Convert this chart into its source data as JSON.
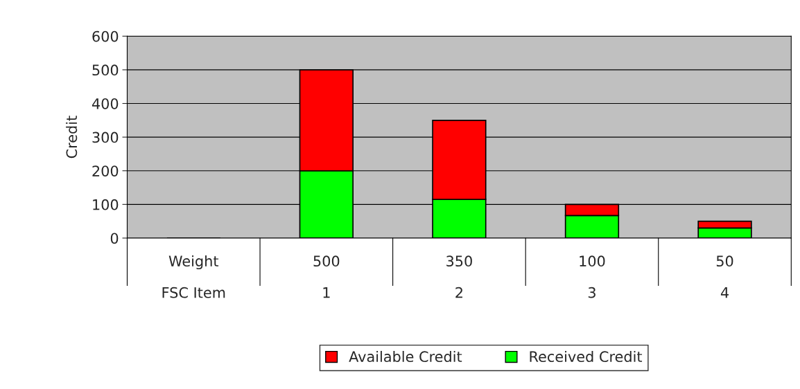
{
  "chart_data": {
    "type": "bar",
    "stacked": true,
    "ylabel": "Credit",
    "categories": [
      "Weight\nFSC Item",
      "500\n1",
      "350\n2",
      "100\n3",
      "50\n4"
    ],
    "series": [
      {
        "name": "Received Credit",
        "color": "#00ff00",
        "values": [
          null,
          200,
          115,
          67,
          30
        ]
      },
      {
        "name": "Available Credit",
        "color": "#ff0000",
        "values": [
          null,
          300,
          235,
          33,
          20
        ]
      }
    ],
    "ylim": [
      0,
      600
    ],
    "yticks": [
      0,
      100,
      200,
      300,
      400,
      500,
      600
    ],
    "grid": "y",
    "legend": "bottom"
  }
}
